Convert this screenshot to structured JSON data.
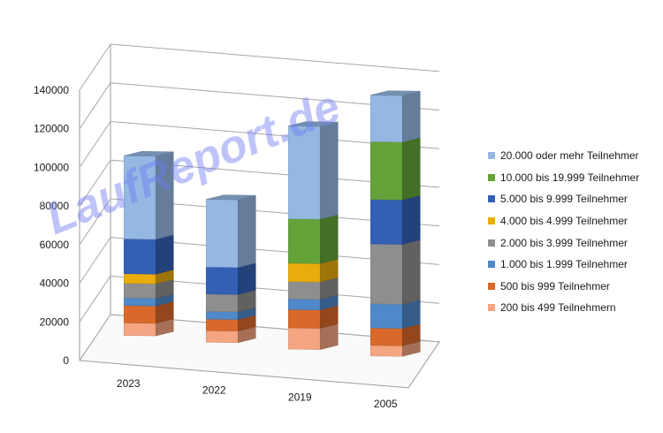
{
  "watermark": "LaufReport.de",
  "chart_data": {
    "type": "bar",
    "stacked": true,
    "three_d": true,
    "title": "",
    "xlabel": "",
    "ylabel": "",
    "ylim": [
      0,
      140000
    ],
    "yticks": [
      "0",
      "20000",
      "40000",
      "60000",
      "80000",
      "100000",
      "120000",
      "140000"
    ],
    "grid": true,
    "legend_position": "right",
    "categories": [
      "2023",
      "2022",
      "2019",
      "2005"
    ],
    "series": [
      {
        "name": "200 bis 499 Teilnehmern",
        "color": "#f4a582",
        "values": [
          6500,
          6000,
          11000,
          5500
        ]
      },
      {
        "name": "500 bis 999 Teilnehmer",
        "color": "#d9692a",
        "values": [
          9000,
          6000,
          9500,
          9000
        ]
      },
      {
        "name": "1.000 bis 1.999 Teilnehmer",
        "color": "#4f89c9",
        "values": [
          4000,
          4000,
          5500,
          12500
        ]
      },
      {
        "name": "2.000 bis 3.999 Teilnehmer",
        "color": "#8e8e8e",
        "values": [
          7500,
          9000,
          9000,
          31000
        ]
      },
      {
        "name": "4.000 bis 4.999 Teilnehmer",
        "color": "#e8ac0d",
        "values": [
          5000,
          0,
          9500,
          0
        ]
      },
      {
        "name": "5.000 bis 9.999 Teilnehmer",
        "color": "#335fb5",
        "values": [
          18000,
          14000,
          0,
          23000
        ]
      },
      {
        "name": "10.000 bis 19.999 Teilnehmer",
        "color": "#64a33a",
        "values": [
          0,
          0,
          23000,
          30000
        ]
      },
      {
        "name": "20.000 oder mehr Teilnehmer",
        "color": "#95b8e3",
        "values": [
          43000,
          35000,
          48000,
          24000
        ]
      }
    ]
  }
}
